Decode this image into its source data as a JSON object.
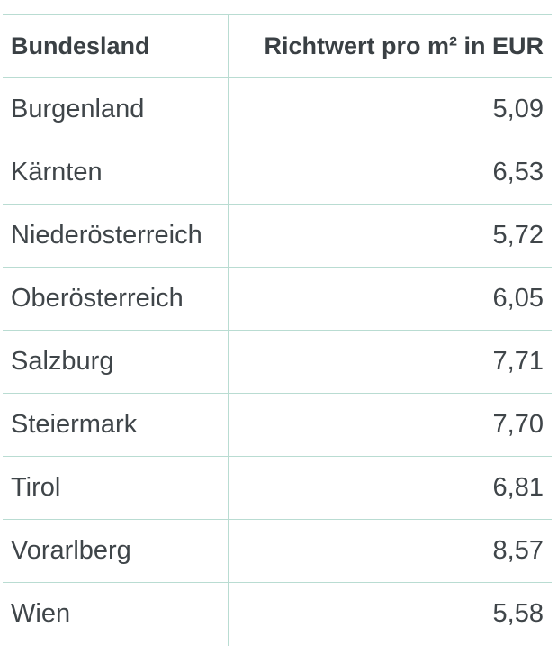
{
  "table": {
    "headers": {
      "state": "Bundesland",
      "value": "Richtwert pro m² in EUR"
    },
    "rows": [
      {
        "state": "Burgenland",
        "value": "5,09"
      },
      {
        "state": "Kärnten",
        "value": "6,53"
      },
      {
        "state": "Niederösterreich",
        "value": "5,72"
      },
      {
        "state": "Oberösterreich",
        "value": "6,05"
      },
      {
        "state": "Salzburg",
        "value": "7,71"
      },
      {
        "state": "Steiermark",
        "value": "7,70"
      },
      {
        "state": "Tirol",
        "value": "6,81"
      },
      {
        "state": "Vorarlberg",
        "value": "8,57"
      },
      {
        "state": "Wien",
        "value": "5,58"
      }
    ]
  },
  "colors": {
    "border": "#b9dcd2",
    "text": "#3f4549"
  }
}
